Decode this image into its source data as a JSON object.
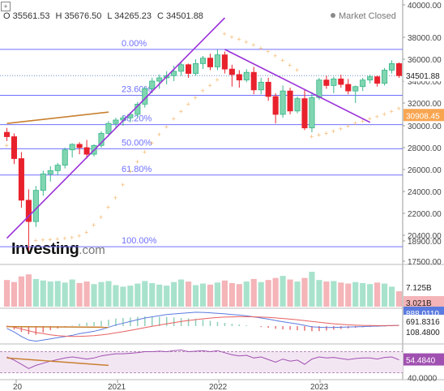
{
  "header": {
    "ohlc": [
      "O 35561.53",
      "H 35676.50",
      "L 34265.23",
      "C 34501.88"
    ],
    "status": "Market Closed"
  },
  "watermark": {
    "brand": "Investing",
    "suffix": ".com"
  },
  "colors": {
    "up": "#38b58a",
    "up_fill": "#7fd6b0",
    "down": "#e8222d",
    "psar": "#f5b76b",
    "fib": "#7070ff",
    "trend": "#9a30d8",
    "support": "#c88030",
    "macd": "#5b7be0",
    "signal": "#e86060",
    "rsi": "#a050b0"
  },
  "chart_data": [
    {
      "type": "candlestick",
      "name": "price",
      "ylim": [
        17500,
        40000
      ],
      "ticks": [
        "40000.00",
        "38000.00",
        "36000.00",
        "34000.00",
        "32000.00",
        "30000.00",
        "28000.00",
        "26000.00",
        "24000.00",
        "22000.00",
        "20400.00",
        "18900.00",
        "17500.00"
      ],
      "tick_values": [
        40000,
        38000,
        36000,
        34000,
        32000,
        30000,
        28000,
        26000,
        24000,
        22000,
        20400,
        18900,
        17500
      ],
      "x_labels": [
        "20",
        "2021",
        "2022",
        "2023"
      ],
      "x_label_positions": [
        2020.0,
        2021.0,
        2022.0,
        2023.0
      ],
      "last_price": {
        "value": 34501.88,
        "label": "34501.88"
      },
      "indicator_price": {
        "value": 30908.45,
        "label": "30908.45"
      },
      "fib_levels": [
        {
          "label": "0.00%",
          "value": 36900
        },
        {
          "label": "23.60%",
          "value": 32700
        },
        {
          "label": "38.20%",
          "value": 30100
        },
        {
          "label": "50.00%",
          "value": 27900
        },
        {
          "label": "61.80%",
          "value": 25500
        },
        {
          "label": "100.00%",
          "value": 18500
        }
      ],
      "candles": [
        [
          29400,
          29800,
          28600,
          29000
        ],
        [
          29000,
          29300,
          26500,
          27000
        ],
        [
          27000,
          27600,
          22500,
          23200
        ],
        [
          23200,
          24200,
          18200,
          21400
        ],
        [
          21400,
          24500,
          21000,
          24100
        ],
        [
          24100,
          25900,
          23600,
          25600
        ],
        [
          25600,
          26300,
          24900,
          25900
        ],
        [
          25900,
          26600,
          25500,
          26400
        ],
        [
          26400,
          28000,
          26100,
          27800
        ],
        [
          27800,
          28400,
          27100,
          28300
        ],
        [
          28300,
          28500,
          27400,
          28000
        ],
        [
          28000,
          28700,
          27000,
          27400
        ],
        [
          27400,
          28300,
          27200,
          28200
        ],
        [
          28200,
          29500,
          28000,
          29300
        ],
        [
          29300,
          30400,
          29000,
          30200
        ],
        [
          30200,
          30700,
          29800,
          30500
        ],
        [
          30500,
          30900,
          30000,
          30700
        ],
        [
          30700,
          31200,
          30300,
          31000
        ],
        [
          31000,
          32100,
          30700,
          31900
        ],
        [
          31900,
          33500,
          31600,
          33300
        ],
        [
          33300,
          34300,
          32900,
          34000
        ],
        [
          34000,
          34600,
          33300,
          34300
        ],
        [
          34300,
          34900,
          33700,
          34500
        ],
        [
          34500,
          35400,
          34000,
          34900
        ],
        [
          34900,
          35700,
          34500,
          35500
        ],
        [
          35500,
          35600,
          34300,
          34700
        ],
        [
          34700,
          36000,
          34500,
          35600
        ],
        [
          35600,
          36300,
          35100,
          36100
        ],
        [
          36100,
          36500,
          35000,
          35300
        ],
        [
          35300,
          36900,
          35000,
          36400
        ],
        [
          36400,
          36700,
          34700,
          35100
        ],
        [
          35100,
          35500,
          33500,
          34600
        ],
        [
          34600,
          35000,
          33400,
          34100
        ],
        [
          34100,
          35100,
          33900,
          34800
        ],
        [
          34800,
          35300,
          32800,
          33200
        ],
        [
          33200,
          34300,
          32800,
          33900
        ],
        [
          33900,
          34300,
          32200,
          32600
        ],
        [
          32600,
          32900,
          30200,
          31000
        ],
        [
          31000,
          33600,
          30700,
          33100
        ],
        [
          33100,
          33400,
          31000,
          31300
        ],
        [
          31300,
          32600,
          31100,
          32400
        ],
        [
          32400,
          33200,
          29600,
          29800
        ],
        [
          29800,
          33000,
          29400,
          32500
        ],
        [
          32500,
          34300,
          32300,
          34100
        ],
        [
          34100,
          34500,
          33300,
          33600
        ],
        [
          33600,
          34400,
          32900,
          34200
        ],
        [
          34200,
          34600,
          33400,
          33700
        ],
        [
          33700,
          34200,
          32800,
          33100
        ],
        [
          33100,
          33600,
          32000,
          33500
        ],
        [
          33500,
          34300,
          33100,
          34100
        ],
        [
          34100,
          34600,
          33800,
          34400
        ],
        [
          34400,
          34500,
          33500,
          33800
        ],
        [
          33800,
          35200,
          33600,
          35000
        ],
        [
          35000,
          35900,
          34700,
          35600
        ],
        [
          35600,
          35700,
          34300,
          34500
        ]
      ],
      "psar": [
        [
          0,
          28200
        ],
        [
          2,
          26800
        ],
        [
          4,
          19000
        ],
        [
          7,
          19300
        ],
        [
          9,
          19800
        ],
        [
          11,
          20600
        ],
        [
          13,
          21700
        ],
        [
          15,
          23400
        ],
        [
          17,
          25800
        ],
        [
          19,
          27600
        ],
        [
          21,
          29200
        ],
        [
          23,
          30600
        ],
        [
          25,
          31900
        ],
        [
          27,
          33100
        ],
        [
          29,
          34100
        ],
        [
          30,
          38200
        ],
        [
          32,
          37800
        ],
        [
          34,
          37300
        ],
        [
          36,
          36700
        ],
        [
          38,
          35900
        ],
        [
          40,
          35000
        ],
        [
          42,
          29000
        ],
        [
          44,
          29300
        ],
        [
          46,
          29700
        ],
        [
          48,
          30200
        ],
        [
          50,
          30600
        ],
        [
          52,
          31000
        ],
        [
          54,
          31500
        ]
      ],
      "trendlines": [
        {
          "from": [
            0,
            19600
          ],
          "to": [
            30,
            39200
          ],
          "color": "trend"
        },
        {
          "from": [
            30,
            36900
          ],
          "to": [
            50,
            30300
          ],
          "color": "trend"
        },
        {
          "from": [
            0,
            30200
          ],
          "to": [
            14,
            31200
          ],
          "color": "support"
        }
      ]
    },
    {
      "type": "bar",
      "name": "volume",
      "ylim": [
        0,
        9000000000
      ],
      "labels": {
        "top": "7.125B",
        "bottom": "3.021B"
      },
      "values": [
        5.2,
        4.8,
        5.9,
        6.3,
        5.4,
        5.1,
        4.9,
        5.0,
        4.7,
        5.3,
        4.6,
        4.9,
        4.4,
        4.8,
        5.0,
        4.2,
        3.9,
        4.1,
        4.5,
        5.0,
        4.6,
        4.3,
        4.1,
        4.8,
        5.3,
        4.9,
        4.2,
        4.5,
        4.3,
        4.7,
        5.1,
        4.6,
        4.4,
        4.9,
        5.4,
        4.8,
        5.2,
        5.6,
        6.0,
        5.3,
        4.9,
        5.6,
        6.8,
        5.2,
        4.9,
        5.0,
        4.7,
        4.5,
        4.8,
        4.6,
        4.4,
        4.7,
        4.5,
        3.9,
        3.0
      ]
    },
    {
      "type": "line",
      "name": "macd",
      "labels": {
        "top": "888.0110",
        "mid": "691.8316",
        "bottom": "108.4800"
      },
      "macd": [
        -200,
        -500,
        -900,
        -1200,
        -1300,
        -1200,
        -1100,
        -1000,
        -900,
        -800,
        -650,
        -550,
        -450,
        -300,
        -100,
        100,
        250,
        400,
        550,
        700,
        800,
        900,
        1000,
        1050,
        1100,
        1150,
        1200,
        1180,
        1150,
        1100,
        1060,
        1000,
        950,
        880,
        800,
        700,
        600,
        480,
        380,
        280,
        180,
        60,
        -60,
        -100,
        -120,
        -110,
        -100,
        -80,
        -60,
        -40,
        -20,
        0,
        20,
        40,
        60
      ],
      "signal": [
        0,
        -100,
        -250,
        -400,
        -550,
        -650,
        -750,
        -820,
        -870,
        -890,
        -880,
        -860,
        -820,
        -760,
        -680,
        -580,
        -480,
        -370,
        -250,
        -130,
        -20,
        90,
        200,
        300,
        400,
        480,
        560,
        630,
        690,
        740,
        780,
        800,
        810,
        810,
        800,
        780,
        750,
        710,
        660,
        600,
        540,
        470,
        400,
        330,
        260,
        200,
        150,
        110,
        80,
        60,
        50,
        45,
        45,
        50,
        55
      ],
      "histogram": [
        -100,
        -300,
        -500,
        -700,
        -750,
        -550,
        -350,
        -200,
        -50,
        50,
        200,
        300,
        350,
        450,
        550,
        650,
        700,
        750,
        800,
        830,
        820,
        810,
        800,
        750,
        700,
        670,
        640,
        550,
        460,
        360,
        280,
        200,
        140,
        70,
        0,
        -80,
        -150,
        -230,
        -280,
        -320,
        -360,
        -400,
        -440,
        -430,
        -380,
        -310,
        -250,
        -190,
        -140,
        -100,
        -70,
        -45,
        -25,
        -10,
        5
      ]
    },
    {
      "type": "line",
      "name": "rsi",
      "ylim": [
        20,
        80
      ],
      "labels": {
        "top": "54.4840",
        "bottom": "40.0000"
      },
      "values": [
        60,
        54,
        46,
        38,
        44,
        48,
        52,
        55,
        58,
        60,
        58,
        56,
        58,
        62,
        64,
        66,
        66,
        67,
        68,
        70,
        70,
        71,
        70,
        72,
        73,
        70,
        71,
        72,
        70,
        72,
        68,
        64,
        62,
        63,
        58,
        60,
        55,
        50,
        56,
        52,
        54,
        46,
        56,
        60,
        58,
        59,
        57,
        55,
        57,
        58,
        58,
        56,
        59,
        60,
        54.5
      ],
      "support": {
        "from": [
          0,
          58
        ],
        "to": [
          14,
          44
        ]
      }
    }
  ]
}
